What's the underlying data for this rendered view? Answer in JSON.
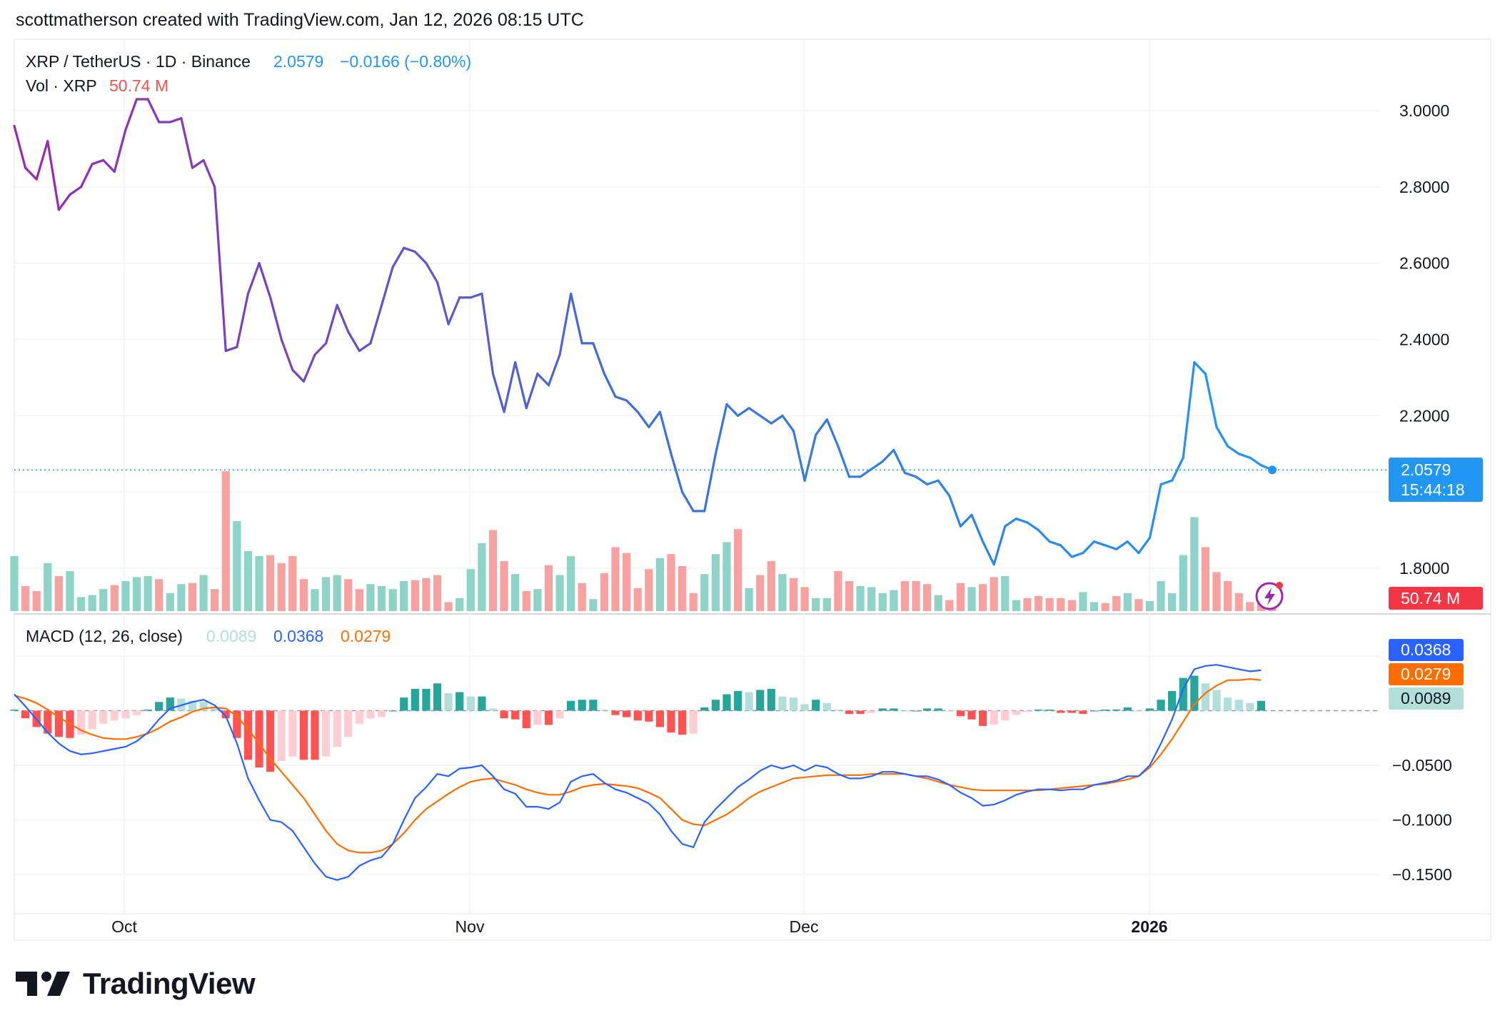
{
  "header": {
    "attribution": "scottmatherson created with TradingView.com, Jan 12, 2026 08:15 UTC"
  },
  "legend": {
    "symbol": "XRP / TetherUS · 1D · Binance",
    "last_price": "2.0579",
    "change": "−0.0166 (−0.80%)",
    "vol_label": "Vol · XRP",
    "vol_value": "50.74 M",
    "macd_label": "MACD (12, 26, close)",
    "macd_hist": "0.0089",
    "macd_line": "0.0368",
    "macd_signal": "0.0279"
  },
  "price_badge": {
    "price": "2.0579",
    "countdown": "15:44:18"
  },
  "vol_badge": "50.74 M",
  "macd_badges": {
    "macd": "0.0368",
    "signal": "0.0279",
    "hist": "0.0089"
  },
  "footer": {
    "brand": "TradingView"
  },
  "colors": {
    "price_line_start": "#9c27b0",
    "price_line_end": "#2196f3",
    "vol_up": "#8dd3c7",
    "vol_down": "#f7a1a1",
    "macd_line": "#2962ff",
    "signal_line": "#ff6d00",
    "hist_pos_strong": "#26a69a",
    "hist_pos_weak": "#b2dfdb",
    "hist_neg_strong": "#ff5252",
    "hist_neg_weak": "#ffcdd2",
    "badge_blue": "#2196f3",
    "badge_red": "#f23645"
  },
  "chart_data": [
    {
      "type": "line",
      "title": "XRP / TetherUS · 1D · Binance",
      "x_ticks": [
        "Oct",
        "Nov",
        "Dec",
        "2026"
      ],
      "y_ticks": [
        "3.0000",
        "2.8000",
        "2.6000",
        "2.4000",
        "2.2000",
        "1.8000"
      ],
      "ylim": [
        1.7,
        3.13
      ],
      "last_value": 2.0579,
      "series": [
        {
          "name": "XRP / TetherUS",
          "values": [
            2.96,
            2.85,
            2.82,
            2.92,
            2.74,
            2.78,
            2.8,
            2.86,
            2.87,
            2.84,
            2.95,
            3.03,
            3.03,
            2.97,
            2.97,
            2.98,
            2.85,
            2.87,
            2.8,
            2.37,
            2.38,
            2.52,
            2.6,
            2.51,
            2.4,
            2.32,
            2.29,
            2.36,
            2.39,
            2.49,
            2.42,
            2.37,
            2.39,
            2.49,
            2.59,
            2.64,
            2.63,
            2.6,
            2.55,
            2.44,
            2.51,
            2.51,
            2.52,
            2.31,
            2.21,
            2.34,
            2.22,
            2.31,
            2.28,
            2.36,
            2.52,
            2.39,
            2.39,
            2.31,
            2.25,
            2.24,
            2.21,
            2.17,
            2.21,
            2.1,
            2.0,
            1.95,
            1.95,
            2.1,
            2.23,
            2.2,
            2.22,
            2.2,
            2.18,
            2.2,
            2.16,
            2.03,
            2.15,
            2.19,
            2.12,
            2.04,
            2.04,
            2.06,
            2.08,
            2.11,
            2.05,
            2.04,
            2.02,
            2.03,
            1.99,
            1.91,
            1.94,
            1.87,
            1.81,
            1.91,
            1.93,
            1.92,
            1.9,
            1.87,
            1.86,
            1.83,
            1.84,
            1.87,
            1.86,
            1.85,
            1.87,
            1.84,
            1.88,
            2.02,
            2.03,
            2.09,
            2.34,
            2.31,
            2.17,
            2.12,
            2.1,
            2.09,
            2.07,
            2.058
          ]
        }
      ]
    },
    {
      "type": "bar",
      "title": "Vol · XRP",
      "last_value": "50.74 M",
      "series": [
        {
          "name": "Vol · XRP",
          "values": [
            55,
            25,
            20,
            48,
            35,
            40,
            14,
            16,
            22,
            26,
            30,
            34,
            35,
            32,
            18,
            27,
            28,
            36,
            22,
            140,
            90,
            60,
            55,
            56,
            48,
            55,
            32,
            22,
            34,
            36,
            32,
            22,
            27,
            25,
            22,
            30,
            31,
            33,
            36,
            9,
            13,
            42,
            68,
            81,
            50,
            37,
            20,
            22,
            46,
            36,
            55,
            28,
            12,
            38,
            64,
            58,
            23,
            42,
            53,
            57,
            45,
            18,
            37,
            57,
            69,
            82,
            23,
            36,
            50,
            37,
            33,
            24,
            13,
            13,
            40,
            30,
            25,
            24,
            18,
            21,
            30,
            30,
            27,
            16,
            11,
            28,
            24,
            27,
            34,
            35,
            11,
            13,
            15,
            13,
            13,
            11,
            19,
            9,
            8,
            15,
            18,
            12,
            10,
            30,
            18,
            56,
            94,
            64,
            39,
            30,
            18,
            9,
            8,
            6
          ]
        }
      ]
    },
    {
      "type": "line",
      "title": "MACD (12, 26, close)",
      "y_ticks": [
        "−0.0500",
        "−0.1000",
        "−0.1500"
      ],
      "ylim": [
        -0.165,
        0.063
      ],
      "series": [
        {
          "name": "MACD",
          "values": [
            0.015,
            0.004,
            -0.008,
            -0.02,
            -0.03,
            -0.037,
            -0.04,
            -0.039,
            -0.037,
            -0.035,
            -0.033,
            -0.028,
            -0.02,
            -0.008,
            0.002,
            0.005,
            0.008,
            0.01,
            0.005,
            -0.005,
            -0.03,
            -0.062,
            -0.082,
            -0.1,
            -0.102,
            -0.11,
            -0.125,
            -0.14,
            -0.152,
            -0.155,
            -0.152,
            -0.142,
            -0.137,
            -0.134,
            -0.122,
            -0.1,
            -0.08,
            -0.07,
            -0.058,
            -0.06,
            -0.053,
            -0.052,
            -0.05,
            -0.06,
            -0.072,
            -0.076,
            -0.088,
            -0.088,
            -0.09,
            -0.084,
            -0.065,
            -0.06,
            -0.058,
            -0.066,
            -0.072,
            -0.075,
            -0.08,
            -0.085,
            -0.095,
            -0.11,
            -0.122,
            -0.125,
            -0.102,
            -0.09,
            -0.08,
            -0.07,
            -0.063,
            -0.055,
            -0.05,
            -0.053,
            -0.05,
            -0.055,
            -0.05,
            -0.052,
            -0.058,
            -0.062,
            -0.062,
            -0.06,
            -0.056,
            -0.056,
            -0.058,
            -0.06,
            -0.06,
            -0.063,
            -0.068,
            -0.075,
            -0.08,
            -0.087,
            -0.086,
            -0.082,
            -0.077,
            -0.074,
            -0.072,
            -0.072,
            -0.073,
            -0.072,
            -0.072,
            -0.068,
            -0.066,
            -0.064,
            -0.06,
            -0.06,
            -0.05,
            -0.03,
            -0.008,
            0.02,
            0.038,
            0.041,
            0.042,
            0.04,
            0.038,
            0.036,
            0.037
          ]
        },
        {
          "name": "Signal",
          "values": [
            0.014,
            0.011,
            0.007,
            0.001,
            -0.006,
            -0.012,
            -0.018,
            -0.022,
            -0.025,
            -0.026,
            -0.026,
            -0.024,
            -0.021,
            -0.016,
            -0.01,
            -0.006,
            -0.001,
            0.002,
            0.003,
            0.002,
            -0.005,
            -0.017,
            -0.03,
            -0.044,
            -0.056,
            -0.068,
            -0.08,
            -0.095,
            -0.11,
            -0.122,
            -0.128,
            -0.13,
            -0.13,
            -0.128,
            -0.122,
            -0.112,
            -0.1,
            -0.09,
            -0.083,
            -0.076,
            -0.07,
            -0.065,
            -0.063,
            -0.062,
            -0.065,
            -0.068,
            -0.072,
            -0.075,
            -0.077,
            -0.077,
            -0.074,
            -0.07,
            -0.068,
            -0.067,
            -0.068,
            -0.069,
            -0.071,
            -0.075,
            -0.08,
            -0.09,
            -0.1,
            -0.104,
            -0.105,
            -0.1,
            -0.095,
            -0.088,
            -0.08,
            -0.074,
            -0.07,
            -0.066,
            -0.062,
            -0.061,
            -0.06,
            -0.059,
            -0.059,
            -0.059,
            -0.059,
            -0.058,
            -0.058,
            -0.058,
            -0.058,
            -0.06,
            -0.062,
            -0.065,
            -0.068,
            -0.07,
            -0.072,
            -0.073,
            -0.073,
            -0.073,
            -0.073,
            -0.073,
            -0.073,
            -0.072,
            -0.071,
            -0.07,
            -0.069,
            -0.068,
            -0.067,
            -0.065,
            -0.063,
            -0.06,
            -0.052,
            -0.04,
            -0.026,
            -0.01,
            0.006,
            0.016,
            0.023,
            0.028,
            0.028,
            0.029,
            0.028
          ]
        },
        {
          "name": "Histogram",
          "values": [
            0.001,
            -0.007,
            -0.015,
            -0.021,
            -0.024,
            -0.025,
            -0.022,
            -0.017,
            -0.012,
            -0.009,
            -0.007,
            -0.004,
            0.001,
            0.008,
            0.012,
            0.011,
            0.009,
            0.008,
            0.002,
            -0.007,
            -0.025,
            -0.045,
            -0.052,
            -0.056,
            -0.046,
            -0.042,
            -0.045,
            -0.045,
            -0.042,
            -0.033,
            -0.024,
            -0.012,
            -0.007,
            -0.006,
            0.0,
            0.012,
            0.02,
            0.02,
            0.025,
            0.016,
            0.017,
            0.013,
            0.013,
            0.002,
            -0.007,
            -0.008,
            -0.016,
            -0.013,
            -0.013,
            -0.007,
            0.009,
            0.01,
            0.01,
            0.001,
            -0.004,
            -0.006,
            -0.009,
            -0.01,
            -0.015,
            -0.02,
            -0.022,
            -0.021,
            0.003,
            0.01,
            0.015,
            0.018,
            0.017,
            0.019,
            0.02,
            0.013,
            0.012,
            0.006,
            0.01,
            0.007,
            0.001,
            -0.003,
            -0.003,
            -0.002,
            0.002,
            0.002,
            0.0,
            0.0,
            0.002,
            0.002,
            0.0,
            -0.005,
            -0.008,
            -0.014,
            -0.013,
            -0.009,
            -0.004,
            -0.001,
            0.001,
            0.001,
            -0.002,
            -0.002,
            -0.003,
            0.0,
            0.001,
            0.001,
            0.003,
            0.0,
            0.002,
            0.01,
            0.018,
            0.03,
            0.032,
            0.025,
            0.019,
            0.012,
            0.01,
            0.007,
            0.009
          ]
        }
      ]
    }
  ]
}
